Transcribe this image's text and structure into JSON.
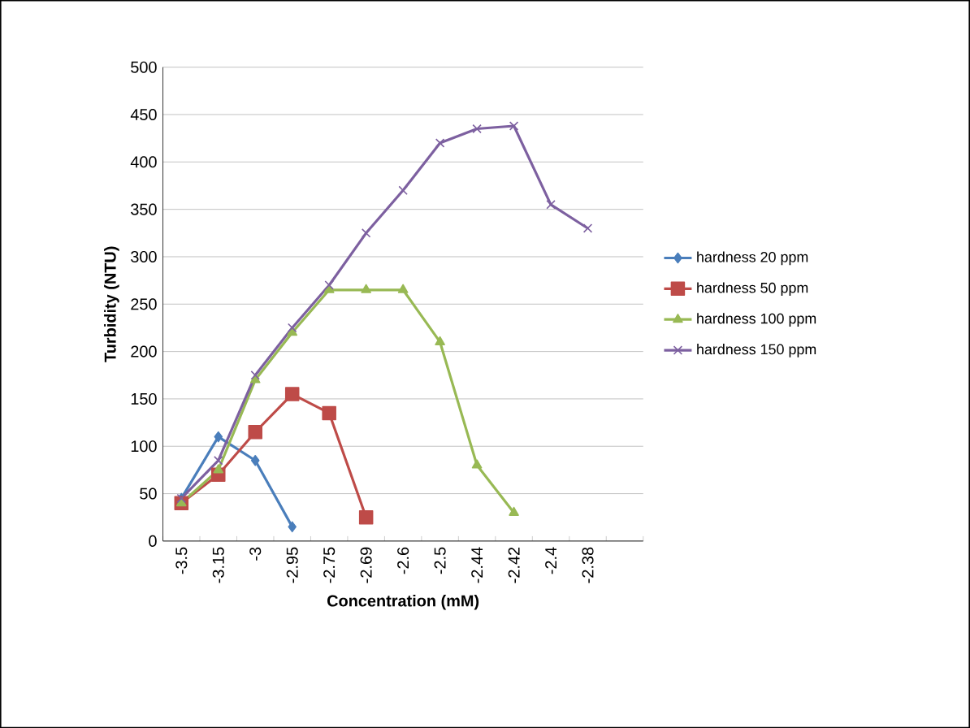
{
  "chart_data": {
    "type": "line",
    "xlabel": "Concentration (mM)",
    "ylabel": "Turbidity (NTU)",
    "categories": [
      "-3.5",
      "-3.15",
      "-3",
      "-2.95",
      "-2.75",
      "-2.69",
      "-2.6",
      "-2.5",
      "-2.44",
      "-2.42",
      "-2.4",
      "-2.38",
      null
    ],
    "series": [
      {
        "name": "hardness 20 ppm",
        "color": "#4a7ebb",
        "marker": "diamond",
        "values": [
          45,
          110,
          85,
          15,
          null,
          null,
          null,
          null,
          null,
          null,
          null,
          null,
          null
        ]
      },
      {
        "name": "hardness 50 ppm",
        "color": "#be4b48",
        "marker": "square",
        "values": [
          40,
          70,
          115,
          155,
          135,
          25,
          null,
          null,
          null,
          null,
          null,
          null,
          null
        ]
      },
      {
        "name": "hardness 100 ppm",
        "color": "#98b954",
        "marker": "triangle",
        "values": [
          40,
          75,
          170,
          220,
          265,
          265,
          265,
          210,
          80,
          30,
          null,
          null,
          null
        ]
      },
      {
        "name": "hardness 150 ppm",
        "color": "#7d60a0",
        "marker": "cross",
        "values": [
          45,
          85,
          175,
          225,
          270,
          325,
          370,
          420,
          435,
          438,
          355,
          330,
          null
        ]
      }
    ],
    "ylim": [
      0,
      500
    ],
    "yticks": [
      0,
      50,
      100,
      150,
      200,
      250,
      300,
      350,
      400,
      450,
      500
    ],
    "grid": "y",
    "legend": "right"
  }
}
